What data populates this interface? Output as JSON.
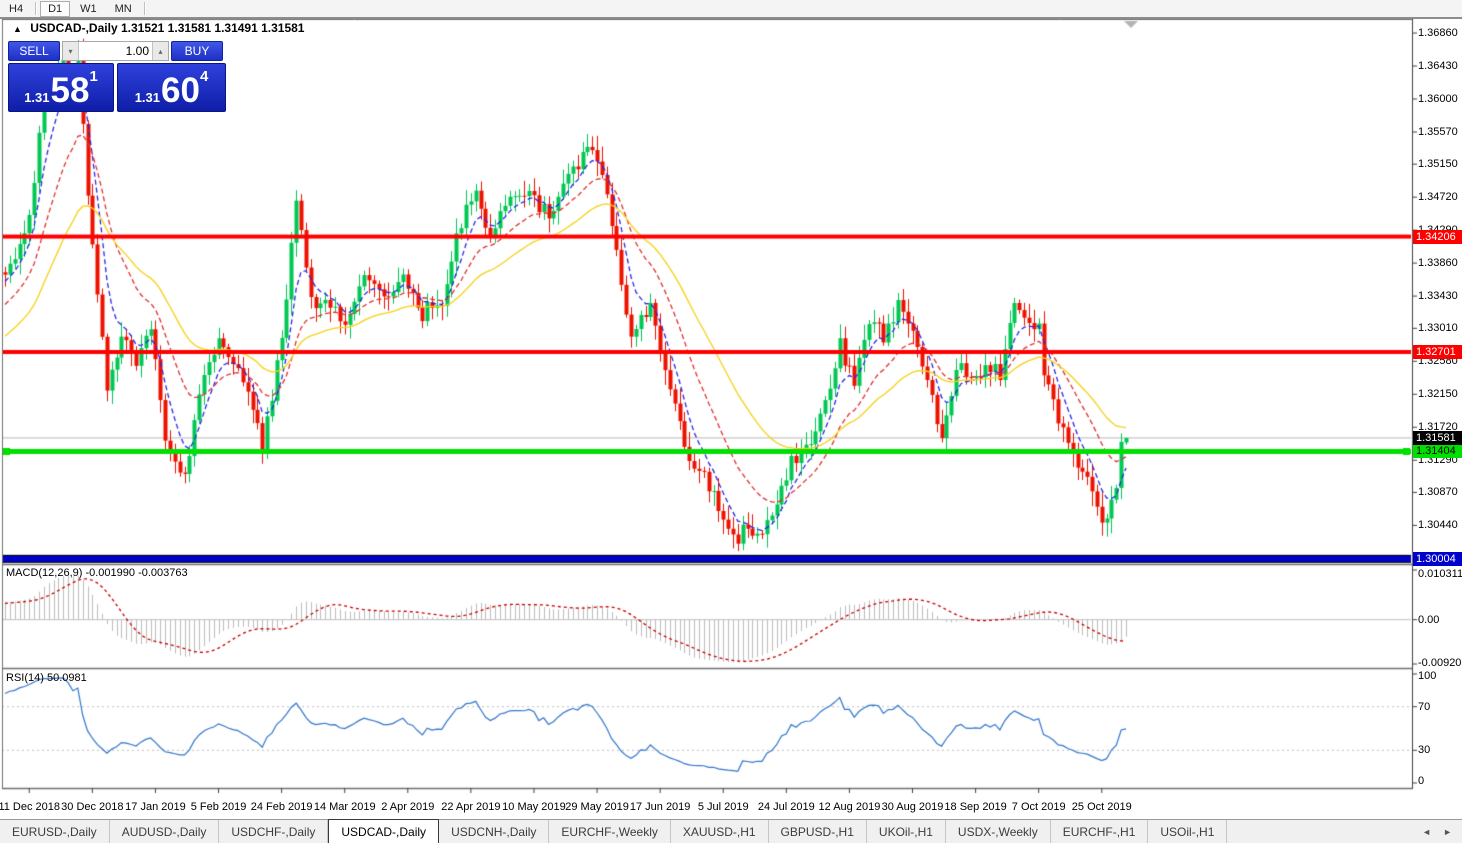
{
  "icons": {
    "collapse": "▲",
    "spinner_down": "▾",
    "spinner_up": "▴",
    "scroll_left": "◄",
    "scroll_right": "►",
    "shift_marker": "▼"
  },
  "toolbar": {
    "timeframes": [
      {
        "label": "H4",
        "active": false
      },
      {
        "label": "D1",
        "active": true
      },
      {
        "label": "W1",
        "active": false
      },
      {
        "label": "MN",
        "active": false
      }
    ]
  },
  "chart_header": {
    "symbol": "USDCAD-,Daily",
    "open": "1.31521",
    "high": "1.31581",
    "low": "1.31491",
    "close": "1.31581"
  },
  "trade_panel": {
    "sell_label": "SELL",
    "buy_label": "BUY",
    "volume": "1.00",
    "sell_price": {
      "prefix": "1.31",
      "big": "58",
      "sup": "1"
    },
    "buy_price": {
      "prefix": "1.31",
      "big": "60",
      "sup": "4"
    }
  },
  "colors": {
    "bull": "#00C853",
    "bear": "#EE1100",
    "ma_fast": "#2828E8",
    "ma_mid": "#E03232",
    "ma_slow": "#F7D117",
    "macd_hist": "#BDBDBD",
    "macd_signal": "#C80000",
    "rsi_line": "#3377CC",
    "level_dotted": "#C0C0C0",
    "bid_line": "#B8B8B8",
    "axis": "#404040",
    "panel_border": "#707070",
    "shift_marker": "#B4B4B4"
  },
  "chart_data": {
    "type": "candlestick",
    "symbol": "USDCAD",
    "timeframe": "Daily",
    "title": "USDCAD-,Daily",
    "ylim": [
      1.2995,
      1.3703
    ],
    "grid": false,
    "y_ticks": [
      "1.36860",
      "1.36430",
      "1.36000",
      "1.35570",
      "1.35150",
      "1.34720",
      "1.34290",
      "1.33860",
      "1.33430",
      "1.33010",
      "1.32580",
      "1.32150",
      "1.31720",
      "1.31290",
      "1.30870",
      "1.30440"
    ],
    "x_ticks": [
      {
        "label": "11 Dec 2018",
        "index": 5
      },
      {
        "label": "30 Dec 2018",
        "index": 18
      },
      {
        "label": "17 Jan 2019",
        "index": 31
      },
      {
        "label": "5 Feb 2019",
        "index": 44
      },
      {
        "label": "24 Feb 2019",
        "index": 57
      },
      {
        "label": "14 Mar 2019",
        "index": 70
      },
      {
        "label": "2 Apr 2019",
        "index": 83
      },
      {
        "label": "22 Apr 2019",
        "index": 96
      },
      {
        "label": "10 May 2019",
        "index": 109
      },
      {
        "label": "29 May 2019",
        "index": 122
      },
      {
        "label": "17 Jun 2019",
        "index": 135
      },
      {
        "label": "5 Jul 2019",
        "index": 148
      },
      {
        "label": "24 Jul 2019",
        "index": 161
      },
      {
        "label": "12 Aug 2019",
        "index": 174
      },
      {
        "label": "30 Aug 2019",
        "index": 187
      },
      {
        "label": "18 Sep 2019",
        "index": 200
      },
      {
        "label": "7 Oct 2019",
        "index": 213
      },
      {
        "label": "25 Oct 2019",
        "index": 226
      }
    ],
    "candles_total": 272,
    "visible_start": 40,
    "price_anchors": [
      [
        0,
        1.316
      ],
      [
        20,
        1.3255
      ],
      [
        30,
        1.331
      ],
      [
        40,
        1.338
      ],
      [
        43,
        1.3405
      ],
      [
        45,
        1.345
      ],
      [
        48,
        1.36
      ],
      [
        52,
        1.3645
      ],
      [
        54,
        1.362
      ],
      [
        55,
        1.366
      ],
      [
        57,
        1.348
      ],
      [
        61,
        1.322
      ],
      [
        64,
        1.329
      ],
      [
        67,
        1.3255
      ],
      [
        70,
        1.33
      ],
      [
        73,
        1.316
      ],
      [
        77,
        1.3105
      ],
      [
        80,
        1.322
      ],
      [
        84,
        1.329
      ],
      [
        87,
        1.326
      ],
      [
        90,
        1.322
      ],
      [
        93,
        1.314
      ],
      [
        97,
        1.329
      ],
      [
        100,
        1.346
      ],
      [
        103,
        1.334
      ],
      [
        106,
        1.333
      ],
      [
        110,
        1.331
      ],
      [
        114,
        1.338
      ],
      [
        118,
        1.334
      ],
      [
        122,
        1.337
      ],
      [
        126,
        1.332
      ],
      [
        130,
        1.334
      ],
      [
        134,
        1.344
      ],
      [
        137,
        1.348
      ],
      [
        140,
        1.342
      ],
      [
        144,
        1.347
      ],
      [
        148,
        1.347
      ],
      [
        152,
        1.345
      ],
      [
        156,
        1.35
      ],
      [
        160,
        1.3535
      ],
      [
        162,
        1.352
      ],
      [
        164,
        1.348
      ],
      [
        169,
        1.329
      ],
      [
        173,
        1.333
      ],
      [
        176,
        1.324
      ],
      [
        180,
        1.315
      ],
      [
        184,
        1.3105
      ],
      [
        188,
        1.306
      ],
      [
        191,
        1.3025
      ],
      [
        193,
        1.3045
      ],
      [
        195,
        1.3035
      ],
      [
        198,
        1.306
      ],
      [
        202,
        1.313
      ],
      [
        206,
        1.315
      ],
      [
        209,
        1.321
      ],
      [
        212,
        1.328
      ],
      [
        215,
        1.323
      ],
      [
        218,
        1.331
      ],
      [
        221,
        1.329
      ],
      [
        224,
        1.333
      ],
      [
        227,
        1.329
      ],
      [
        230,
        1.323
      ],
      [
        233,
        1.315
      ],
      [
        236,
        1.3255
      ],
      [
        239,
        1.323
      ],
      [
        242,
        1.3255
      ],
      [
        245,
        1.324
      ],
      [
        248,
        1.333
      ],
      [
        250,
        1.3315
      ],
      [
        253,
        1.3305
      ],
      [
        254,
        1.324
      ],
      [
        256,
        1.32
      ],
      [
        258,
        1.317
      ],
      [
        261,
        1.313
      ],
      [
        264,
        1.3085
      ],
      [
        267,
        1.3045
      ],
      [
        269,
        1.31
      ],
      [
        270,
        1.3145
      ],
      [
        271,
        1.31581
      ]
    ],
    "last_candle": {
      "open": 1.31521,
      "high": 1.31581,
      "low": 1.31491,
      "close": 1.31581
    },
    "hlines": [
      {
        "price": 1.34206,
        "label": "1.34206",
        "color": "#FF0000",
        "text": "#FFFFFF",
        "width": 4,
        "handles": false,
        "edge": false
      },
      {
        "price": 1.32701,
        "label": "1.32701",
        "color": "#FF0000",
        "text": "#FFFFFF",
        "width": 4,
        "handles": false,
        "edge": false
      },
      {
        "price": 1.31404,
        "label": "1.31404",
        "color": "#00E000",
        "text": "#000000",
        "width": 5,
        "handles": true,
        "edge": false
      },
      {
        "price": 1.30004,
        "label": "1.30004",
        "color": "#0000CC",
        "text": "#FFFFFF",
        "width": 6,
        "handles": false,
        "edge": true
      }
    ],
    "bid": {
      "price": 1.31581,
      "label": "1.31581",
      "bg": "#000000",
      "text": "#FFFFFF"
    },
    "moving_averages": [
      {
        "period": 6,
        "style": "dashed",
        "color_key": "ma_fast"
      },
      {
        "period": 16,
        "style": "dashed",
        "color_key": "ma_mid"
      },
      {
        "period": 34,
        "style": "solid",
        "color_key": "ma_slow"
      }
    ],
    "macd": {
      "label": "MACD(12,26,9) -0.001990 -0.003763",
      "params": [
        12,
        26,
        9
      ],
      "value_main": "-0.001990",
      "value_signal": "-0.003763",
      "scale_max": "0.010311",
      "scale_zero": "0.00",
      "scale_min": "-0.009203",
      "ylim": [
        -0.009203,
        0.010311
      ]
    },
    "rsi": {
      "label": "RSI(14) 50.0981",
      "period": 14,
      "value": "50.0981",
      "scale": [
        "100",
        "70",
        "30",
        "0"
      ],
      "levels": [
        70,
        30
      ],
      "ylim": [
        0,
        100
      ]
    }
  },
  "tabs": {
    "items": [
      {
        "label": "EURUSD-,Daily",
        "active": false
      },
      {
        "label": "AUDUSD-,Daily",
        "active": false
      },
      {
        "label": "USDCHF-,Daily",
        "active": false
      },
      {
        "label": "USDCAD-,Daily",
        "active": true
      },
      {
        "label": "USDCNH-,Daily",
        "active": false
      },
      {
        "label": "EURCHF-,Weekly",
        "active": false
      },
      {
        "label": "XAUUSD-,H1",
        "active": false
      },
      {
        "label": "GBPUSD-,H1",
        "active": false
      },
      {
        "label": "UKOil-,H1",
        "active": false
      },
      {
        "label": "USDX-,Weekly",
        "active": false
      },
      {
        "label": "EURCHF-,H1",
        "active": false
      },
      {
        "label": "USOil-,H1",
        "active": false
      }
    ]
  }
}
